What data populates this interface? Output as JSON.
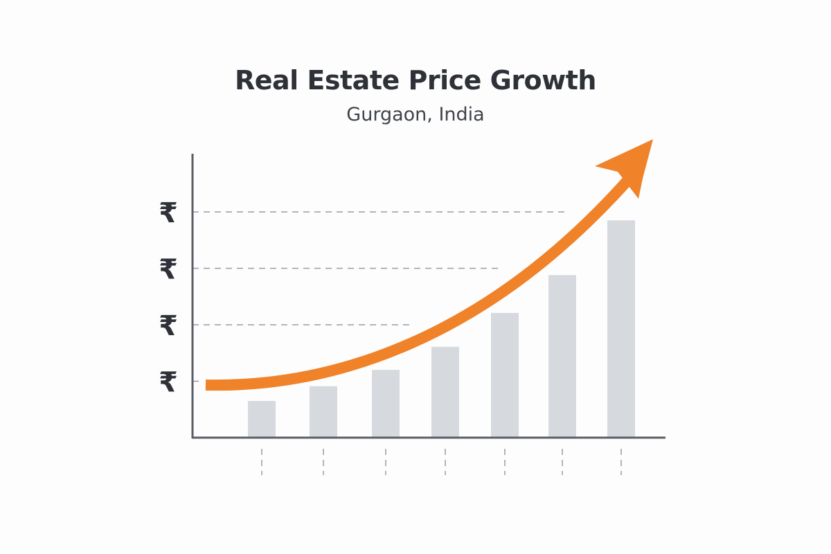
{
  "chart_data": {
    "type": "bar",
    "title": "Real Estate Price Growth",
    "subtitle": "Gurgaon, India",
    "xlabel": "",
    "ylabel": "",
    "categories": [
      "",
      "",
      "",
      "",
      "",
      "",
      ""
    ],
    "values": [
      0.65,
      0.91,
      1.2,
      1.61,
      2.21,
      2.88,
      3.85
    ],
    "y_ticks": [
      {
        "value": 1,
        "label": "₹"
      },
      {
        "value": 2,
        "label": "₹"
      },
      {
        "value": 3,
        "label": "₹"
      },
      {
        "value": 4,
        "label": "₹"
      }
    ],
    "ylim": [
      0,
      5
    ],
    "grid": "dashed horizontal",
    "trend_arrow": "upward curved arrow",
    "colors": {
      "bars": "#d6d9dd",
      "arrow": "#f0822a",
      "axis": "#5a5d64",
      "grid": "#9a9ca0",
      "text": "#2e3138"
    }
  }
}
